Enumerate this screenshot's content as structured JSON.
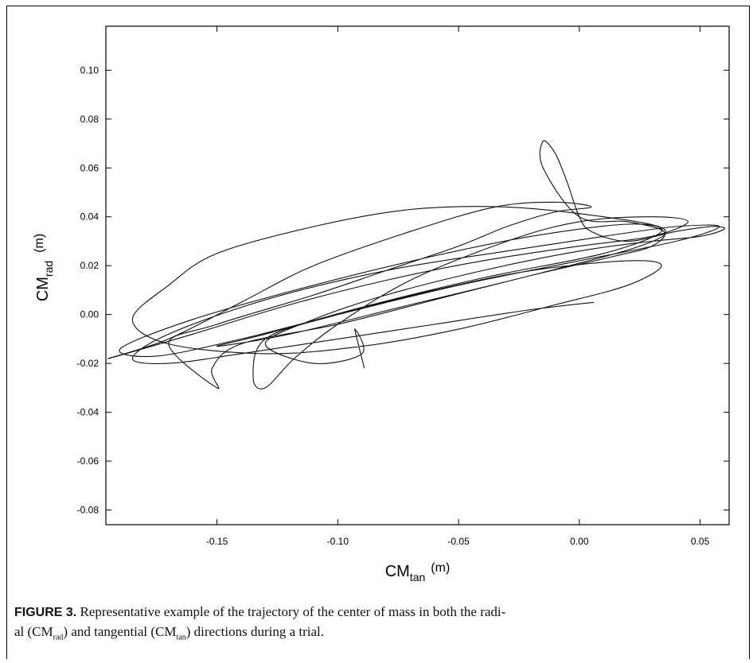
{
  "chart_data": {
    "type": "line",
    "xlabel": "CM",
    "xlabel_sub": "tan",
    "xlabel_unit": "(m)",
    "ylabel": "CM",
    "ylabel_sub": "rad",
    "ylabel_unit": "(m)",
    "xlim": [
      -0.196,
      0.062
    ],
    "ylim": [
      -0.086,
      0.118
    ],
    "xticks": [
      -0.15,
      -0.1,
      -0.05,
      0.0,
      0.05
    ],
    "xtick_labels": [
      "-0.15",
      "-0.10",
      "-0.05",
      "0.00",
      "0.05"
    ],
    "yticks": [
      0.1,
      0.08,
      0.06,
      0.04,
      0.02,
      0.0,
      -0.02,
      -0.04,
      -0.06,
      -0.08
    ],
    "ytick_labels": [
      "0.10",
      "0.08",
      "0.06",
      "0.04",
      "0.02",
      "0.00",
      "-0.02",
      "-0.04",
      "-0.06",
      "-0.08"
    ],
    "grid": false,
    "series": [
      {
        "values": [
          [
            0.006,
            0.005
          ],
          [
            -0.02,
            0.002
          ],
          [
            -0.06,
            -0.004
          ],
          [
            -0.1,
            -0.01
          ],
          [
            -0.14,
            -0.016
          ],
          [
            -0.17,
            -0.02
          ],
          [
            -0.185,
            -0.018
          ],
          [
            -0.17,
            -0.008
          ],
          [
            -0.13,
            0.006
          ],
          [
            -0.08,
            0.018
          ],
          [
            -0.03,
            0.026
          ],
          [
            0.01,
            0.032
          ],
          [
            0.04,
            0.036
          ],
          [
            0.058,
            0.036
          ],
          [
            0.04,
            0.03
          ],
          [
            0.0,
            0.022
          ],
          [
            -0.05,
            0.012
          ],
          [
            -0.1,
            0.0
          ],
          [
            -0.14,
            -0.01
          ],
          [
            -0.175,
            -0.017
          ],
          [
            -0.19,
            -0.014
          ],
          [
            -0.16,
            -0.002
          ],
          [
            -0.11,
            0.012
          ],
          [
            -0.06,
            0.024
          ],
          [
            -0.02,
            0.032
          ],
          [
            0.02,
            0.037
          ],
          [
            0.034,
            0.034
          ],
          [
            0.01,
            0.025
          ],
          [
            -0.04,
            0.015
          ],
          [
            -0.09,
            0.003
          ],
          [
            -0.13,
            -0.008
          ],
          [
            -0.15,
            -0.013
          ],
          [
            -0.12,
            -0.008
          ],
          [
            -0.07,
            0.004
          ],
          [
            -0.02,
            0.016
          ],
          [
            0.025,
            0.028
          ],
          [
            0.035,
            0.035
          ],
          [
            0.01,
            0.04
          ],
          [
            -0.03,
            0.044
          ],
          [
            -0.07,
            0.043
          ],
          [
            -0.11,
            0.036
          ],
          [
            -0.15,
            0.025
          ],
          [
            -0.17,
            0.012
          ],
          [
            -0.185,
            -0.002
          ],
          [
            -0.17,
            -0.012
          ],
          [
            -0.13,
            -0.016
          ],
          [
            -0.09,
            -0.013
          ],
          [
            -0.05,
            -0.006
          ],
          [
            -0.01,
            0.004
          ],
          [
            0.02,
            0.012
          ],
          [
            0.034,
            0.02
          ],
          [
            0.02,
            0.022
          ],
          [
            -0.02,
            0.018
          ],
          [
            -0.06,
            0.01
          ],
          [
            -0.1,
            0.0
          ],
          [
            -0.13,
            -0.01
          ],
          [
            -0.135,
            -0.026
          ],
          [
            -0.13,
            -0.03
          ],
          [
            -0.118,
            -0.018
          ],
          [
            -0.1,
            -0.004
          ],
          [
            -0.07,
            0.014
          ],
          [
            -0.03,
            0.03
          ],
          [
            0.0,
            0.038
          ],
          [
            0.03,
            0.04
          ],
          [
            0.045,
            0.038
          ],
          [
            0.03,
            0.032
          ],
          [
            0.0,
            0.028
          ],
          [
            -0.04,
            0.022
          ],
          [
            -0.08,
            0.014
          ],
          [
            -0.12,
            0.004
          ],
          [
            -0.16,
            -0.008
          ],
          [
            -0.195,
            -0.018
          ],
          [
            -0.17,
            -0.01
          ],
          [
            -0.14,
            0.005
          ],
          [
            -0.11,
            0.02
          ],
          [
            -0.07,
            0.034
          ],
          [
            -0.035,
            0.044
          ],
          [
            -0.01,
            0.046
          ],
          [
            0.005,
            0.044
          ],
          [
            -0.01,
            0.042
          ],
          [
            -0.03,
            0.036
          ],
          [
            -0.05,
            0.028
          ],
          [
            -0.08,
            0.018
          ],
          [
            -0.11,
            0.008
          ],
          [
            -0.15,
            -0.004
          ],
          [
            -0.17,
            -0.012
          ],
          [
            -0.15,
            -0.03
          ],
          [
            -0.152,
            -0.022
          ],
          [
            -0.14,
            -0.012
          ],
          [
            -0.1,
            -0.004
          ],
          [
            -0.06,
            0.006
          ],
          [
            -0.02,
            0.016
          ],
          [
            0.015,
            0.024
          ],
          [
            0.03,
            0.028
          ],
          [
            0.035,
            0.034
          ],
          [
            0.02,
            0.038
          ],
          [
            0.0,
            0.04
          ],
          [
            -0.015,
            0.06
          ],
          [
            -0.015,
            0.071
          ],
          [
            -0.01,
            0.066
          ],
          [
            -0.005,
            0.054
          ],
          [
            0.0,
            0.04
          ],
          [
            0.005,
            0.034
          ],
          [
            0.02,
            0.03
          ],
          [
            0.04,
            0.034
          ],
          [
            0.055,
            0.036
          ],
          [
            0.06,
            0.035
          ],
          [
            0.05,
            0.032
          ],
          [
            0.03,
            0.03
          ],
          [
            0.0,
            0.026
          ],
          [
            -0.04,
            0.018
          ],
          [
            -0.08,
            0.008
          ],
          [
            -0.11,
            -0.002
          ],
          [
            -0.13,
            -0.012
          ],
          [
            -0.11,
            -0.02
          ],
          [
            -0.09,
            -0.016
          ],
          [
            -0.093,
            -0.006
          ],
          [
            -0.089,
            -0.022
          ]
        ]
      }
    ]
  },
  "caption": {
    "label": "FIGURE 3.",
    "text_parts": [
      "Representative example of the trajectory of the center of mass in both the radi-",
      "al (CM",
      "rad",
      ") and tangential (CM",
      "tan",
      ") directions during a trial."
    ]
  }
}
